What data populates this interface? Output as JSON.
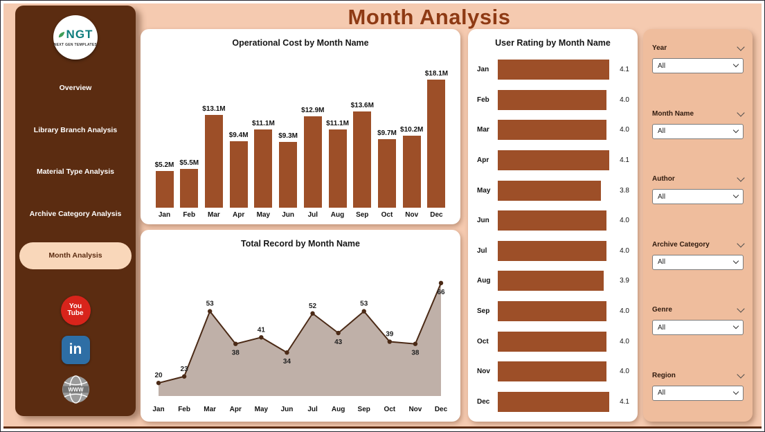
{
  "title": "Month Analysis",
  "sidebar": {
    "logo": {
      "name": "NGT",
      "subtitle": "NEXT GEN TEMPLATES"
    },
    "items": [
      {
        "label": "Overview",
        "active": false
      },
      {
        "label": "Library Branch Analysis",
        "active": false
      },
      {
        "label": "Material Type Analysis",
        "active": false
      },
      {
        "label": "Archive Category Analysis",
        "active": false
      },
      {
        "label": "Month Analysis",
        "active": true
      }
    ],
    "social": [
      {
        "name": "youtube",
        "line1": "You",
        "line2": "Tube"
      },
      {
        "name": "linkedin",
        "text": "in"
      },
      {
        "name": "website",
        "text": "WWW"
      }
    ]
  },
  "filters": [
    {
      "label": "Year",
      "value": "All"
    },
    {
      "label": "Month Name",
      "value": "All"
    },
    {
      "label": "Author",
      "value": "All"
    },
    {
      "label": "Archive Category",
      "value": "All"
    },
    {
      "label": "Genre",
      "value": "All"
    },
    {
      "label": "Region",
      "value": "All"
    }
  ],
  "chart_data": [
    {
      "type": "bar",
      "title": "Operational Cost by Month Name",
      "categories": [
        "Jan",
        "Feb",
        "Mar",
        "Apr",
        "May",
        "Jun",
        "Jul",
        "Aug",
        "Sep",
        "Oct",
        "Nov",
        "Dec"
      ],
      "values": [
        5.2,
        5.5,
        13.1,
        9.4,
        11.1,
        9.3,
        12.9,
        11.1,
        13.6,
        9.7,
        10.2,
        18.1
      ],
      "labels": [
        "$5.2M",
        "$5.5M",
        "$13.1M",
        "$9.4M",
        "$11.1M",
        "$9.3M",
        "$12.9M",
        "$11.1M",
        "$13.6M",
        "$9.7M",
        "$10.2M",
        "$18.1M"
      ],
      "unit": "USD millions",
      "ylim": [
        0,
        18.1
      ],
      "bar_color": "#9d4f28",
      "legend": "none",
      "grid": false
    },
    {
      "type": "area",
      "title": "Total Record by Month Name",
      "categories": [
        "Jan",
        "Feb",
        "Mar",
        "Apr",
        "May",
        "Jun",
        "Jul",
        "Aug",
        "Sep",
        "Oct",
        "Nov",
        "Dec"
      ],
      "values": [
        20,
        23,
        53,
        38,
        41,
        34,
        52,
        43,
        53,
        39,
        38,
        66
      ],
      "ylim": [
        14,
        72
      ],
      "line_color": "#4b2a16",
      "fill_color": "#b8a79e",
      "legend": "none",
      "grid": false
    },
    {
      "type": "bar",
      "orientation": "horizontal",
      "title": "User Rating by Month Name",
      "categories": [
        "Jan",
        "Feb",
        "Mar",
        "Apr",
        "May",
        "Jun",
        "Jul",
        "Aug",
        "Sep",
        "Oct",
        "Nov",
        "Dec"
      ],
      "values": [
        4.1,
        4.0,
        4.0,
        4.1,
        3.8,
        4.0,
        4.0,
        3.9,
        4.0,
        4.0,
        4.0,
        4.1
      ],
      "labels": [
        "4.1",
        "4.0",
        "4.0",
        "4.1",
        "3.8",
        "4.0",
        "4.0",
        "3.9",
        "4.0",
        "4.0",
        "4.0",
        "4.1"
      ],
      "xlim": [
        0,
        4.1
      ],
      "bar_color": "#9d4f28",
      "legend": "none",
      "grid": false
    }
  ],
  "colors": {
    "background": "#f5cab0",
    "sidebar": "#5b2c11",
    "accent": "#9d4f28",
    "title_text": "#8e3a14",
    "active_nav_bg": "#f9d7ba",
    "filter_panel_bg": "#efbd9d",
    "card_bg": "#ffffff"
  }
}
